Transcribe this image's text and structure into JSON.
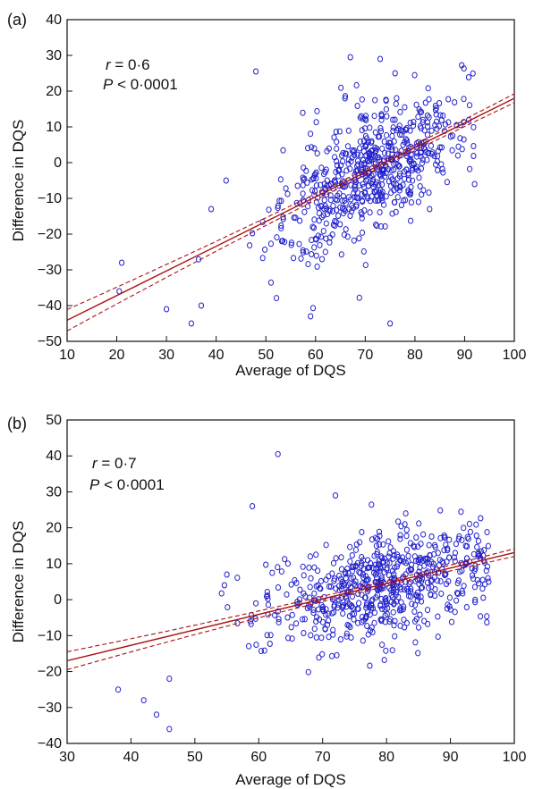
{
  "chart_data": [
    {
      "type": "scatter",
      "panel_label": "(a)",
      "xlabel": "Average of DQS",
      "ylabel": "Difference in DQS",
      "xlim": [
        10,
        100
      ],
      "ylim": [
        -50,
        40
      ],
      "xticks": [
        "10",
        "20",
        "30",
        "40",
        "50",
        "60",
        "70",
        "80",
        "90",
        "100"
      ],
      "yticks": [
        "-50",
        "-40",
        "-30",
        "-20",
        "-10",
        "0",
        "10",
        "20",
        "30",
        "40"
      ],
      "grid": false,
      "annotation": {
        "r_symbol": "r",
        "r_value": " = 0·6",
        "p_symbol": "P",
        "p_value": " < 0·0001"
      },
      "marker_color": "#2222cc",
      "regression": {
        "slope": 0.69,
        "intercept": -51.0,
        "color": "#aa1111",
        "ci_half_width_at_ends": 3.0,
        "ci_half_width_at_center": 0.8,
        "ci_center_x": 72
      },
      "cluster": {
        "n": 620,
        "x_center": 72,
        "x_sd": 9,
        "residual_sd": 8.5,
        "x_min": 35,
        "x_max": 92
      },
      "sample_points": [
        [
          20.5,
          -36
        ],
        [
          21,
          -28
        ],
        [
          30,
          -41
        ],
        [
          35,
          -45
        ],
        [
          37,
          -40
        ],
        [
          39,
          -13
        ],
        [
          42,
          -5
        ],
        [
          48,
          25.5
        ],
        [
          59,
          -43
        ],
        [
          67,
          29.5
        ],
        [
          73,
          29
        ],
        [
          76,
          25
        ],
        [
          92,
          -6
        ],
        [
          75,
          -45
        ]
      ]
    },
    {
      "type": "scatter",
      "panel_label": "(b)",
      "xlabel": "Average of DQS",
      "ylabel": "Difference in DQS",
      "xlim": [
        30,
        100
      ],
      "ylim": [
        -40,
        50
      ],
      "xticks": [
        "30",
        "40",
        "50",
        "60",
        "70",
        "80",
        "90",
        "100"
      ],
      "yticks": [
        "-40",
        "-30",
        "-20",
        "-10",
        "0",
        "10",
        "20",
        "30",
        "40",
        "50"
      ],
      "grid": false,
      "annotation": {
        "r_symbol": "r",
        "r_value": " = 0·7",
        "p_symbol": "P",
        "p_value": " < 0·0001"
      },
      "marker_color": "#2222cc",
      "regression": {
        "slope": 0.43,
        "intercept": -29.9,
        "color": "#aa1111",
        "ci_half_width_at_ends": 2.5,
        "ci_half_width_at_center": 0.7,
        "ci_center_x": 78
      },
      "cluster": {
        "n": 620,
        "x_center": 80,
        "x_sd": 9,
        "residual_sd": 7.5,
        "x_min": 45,
        "x_max": 96
      },
      "sample_points": [
        [
          38,
          -25
        ],
        [
          42,
          -28
        ],
        [
          44,
          -32
        ],
        [
          46,
          -36
        ],
        [
          46,
          -22
        ],
        [
          63,
          40.5
        ],
        [
          59,
          26
        ],
        [
          72,
          29
        ],
        [
          83,
          24
        ],
        [
          55,
          7
        ],
        [
          96,
          5
        ]
      ]
    }
  ]
}
